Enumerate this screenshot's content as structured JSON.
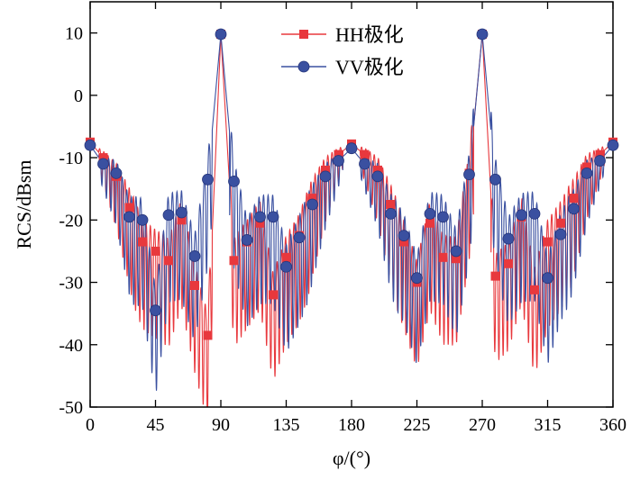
{
  "chart_data": {
    "type": "line",
    "title": "",
    "xlabel": "φ/(°)",
    "ylabel": "RCS/dBsm",
    "xlim": [
      0,
      360
    ],
    "ylim": [
      -50,
      15
    ],
    "xticks": [
      0,
      45,
      90,
      135,
      180,
      225,
      270,
      315,
      360
    ],
    "yticks": [
      10,
      0,
      -10,
      -20,
      -30,
      -40,
      -50
    ],
    "grid": false,
    "legend_position": "top-center",
    "series": [
      {
        "name": "HH极化",
        "color": "#e8383d",
        "marker": "square",
        "marker_points": {
          "x": [
            0,
            9,
            18,
            27,
            36,
            45,
            54,
            63,
            72,
            81,
            90,
            99,
            108,
            117,
            126,
            135,
            144,
            153,
            162,
            171,
            180,
            189,
            198,
            207,
            216,
            225,
            234,
            243,
            252,
            261,
            270,
            279,
            288,
            297,
            306,
            315,
            324,
            333,
            342,
            351,
            360
          ],
          "y": [
            -7.5,
            -10,
            -13,
            -18,
            -23.5,
            -25,
            -26.5,
            -20,
            -30.5,
            -38.5,
            9.8,
            -26.5,
            -23.5,
            -20.5,
            -32,
            -26,
            -22.5,
            -16.5,
            -12,
            -9.5,
            -7.8,
            -9.5,
            -12,
            -17.5,
            -23.5,
            -30,
            -20.5,
            -26,
            -26.2,
            -12.5,
            9.8,
            -29,
            -27,
            -19.5,
            -31.2,
            -23.5,
            -20.5,
            -16.5,
            -11.5,
            -9.5,
            -7.5
          ]
        }
      },
      {
        "name": "VV极化",
        "color": "#3a50a0",
        "marker": "circle",
        "marker_points": {
          "x": [
            0,
            9,
            18,
            27,
            36,
            45,
            54,
            63,
            72,
            81,
            90,
            99,
            108,
            117,
            126,
            135,
            144,
            153,
            162,
            171,
            180,
            189,
            198,
            207,
            216,
            225,
            234,
            243,
            252,
            261,
            270,
            279,
            288,
            297,
            306,
            315,
            324,
            333,
            342,
            351,
            360
          ],
          "y": [
            -8,
            -11,
            -12.5,
            -19.5,
            -20,
            -34.5,
            -19.2,
            -18.8,
            -25.8,
            -13.5,
            9.8,
            -13.8,
            -23.2,
            -19.5,
            -19.5,
            -27.5,
            -22.8,
            -17.5,
            -13,
            -10.5,
            -8.5,
            -11,
            -13,
            -19,
            -22.5,
            -29.3,
            -19,
            -19.5,
            -25,
            -12.7,
            9.8,
            -13.5,
            -23,
            -19.2,
            -19,
            -29.3,
            -22.3,
            -18.2,
            -12.5,
            -10.5,
            -8
          ]
        }
      }
    ]
  }
}
